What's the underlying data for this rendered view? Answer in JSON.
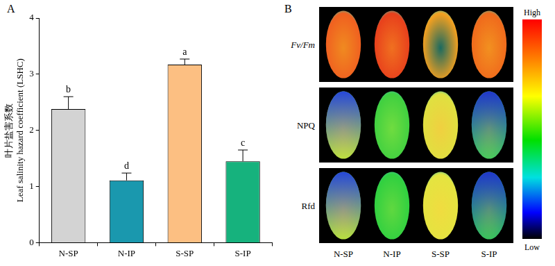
{
  "chart_data": {
    "type": "bar",
    "categories": [
      "N-SP",
      "N-IP",
      "S-SP",
      "S-IP"
    ],
    "values": [
      2.38,
      1.11,
      3.17,
      1.45
    ],
    "errors": [
      0.22,
      0.13,
      0.1,
      0.2
    ],
    "letters": [
      "b",
      "d",
      "a",
      "c"
    ],
    "colors": [
      "#d3d3d3",
      "#1a98ae",
      "#fcbf82",
      "#16b27d"
    ],
    "y_label": [
      "叶片盐害系数",
      "Leaf salinity hazard coefficient (LSHC)"
    ],
    "ylim": [
      0,
      4
    ],
    "yticks": [
      0,
      1,
      2,
      3,
      4
    ],
    "grid": false
  },
  "panel_labels": [
    "A",
    "B"
  ],
  "image_panel": {
    "rows": [
      "Fv/Fm",
      "NPQ",
      "Rfd"
    ],
    "columns": [
      "N-SP",
      "N-IP",
      "S-SP",
      "S-IP"
    ],
    "colorbar": {
      "high": "High",
      "low": "Low"
    }
  }
}
